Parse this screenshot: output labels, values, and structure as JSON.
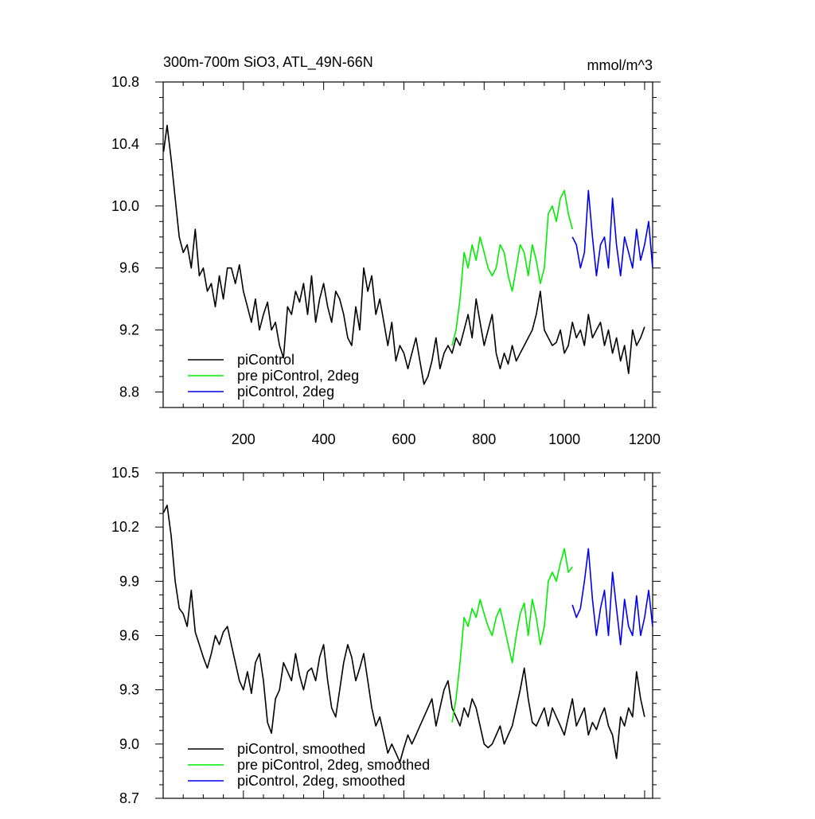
{
  "chart_data": [
    {
      "type": "line",
      "title": "300m-700m SiO3, ATL_49N-66N",
      "units": "mmol/m^3",
      "xlim": [
        0,
        1220
      ],
      "ylim": [
        8.7,
        10.8
      ],
      "xticks": [
        200,
        400,
        600,
        800,
        1000,
        1200
      ],
      "yticks": [
        8.8,
        9.2,
        9.6,
        10.0,
        10.4,
        10.8
      ],
      "ytick_labels": [
        "8.8",
        "9.2",
        "9.6",
        "10.0",
        "10.4",
        "10.8"
      ],
      "show_x_labels": true,
      "legend_position": "bottom-left",
      "series": [
        {
          "name": "piControl",
          "color": "#000000",
          "x": [
            1,
            10,
            20,
            30,
            40,
            50,
            60,
            70,
            80,
            90,
            100,
            110,
            120,
            130,
            140,
            150,
            160,
            170,
            180,
            190,
            200,
            210,
            220,
            230,
            240,
            250,
            260,
            270,
            280,
            290,
            300,
            310,
            320,
            330,
            340,
            350,
            360,
            370,
            380,
            390,
            400,
            410,
            420,
            430,
            440,
            450,
            460,
            470,
            480,
            490,
            500,
            510,
            520,
            530,
            540,
            550,
            560,
            570,
            580,
            590,
            600,
            610,
            620,
            630,
            640,
            650,
            660,
            670,
            680,
            690,
            700,
            710,
            720,
            730,
            740,
            750,
            760,
            770,
            780,
            790,
            800,
            810,
            820,
            830,
            840,
            850,
            860,
            870,
            880,
            890,
            900,
            910,
            920,
            930,
            940,
            950,
            960,
            970,
            980,
            990,
            1000,
            1010,
            1020,
            1030,
            1040,
            1050,
            1060,
            1070,
            1080,
            1090,
            1100,
            1110,
            1120,
            1130,
            1140,
            1150,
            1160,
            1170,
            1180,
            1190,
            1200
          ],
          "y": [
            10.35,
            10.52,
            10.3,
            10.05,
            9.8,
            9.7,
            9.75,
            9.6,
            9.85,
            9.55,
            9.6,
            9.45,
            9.5,
            9.35,
            9.55,
            9.4,
            9.6,
            9.6,
            9.5,
            9.62,
            9.45,
            9.35,
            9.25,
            9.4,
            9.2,
            9.3,
            9.38,
            9.2,
            9.25,
            9.1,
            9.02,
            9.35,
            9.3,
            9.45,
            9.38,
            9.5,
            9.3,
            9.55,
            9.25,
            9.4,
            9.5,
            9.35,
            9.25,
            9.45,
            9.4,
            9.3,
            9.15,
            9.1,
            9.35,
            9.2,
            9.6,
            9.45,
            9.55,
            9.3,
            9.4,
            9.25,
            9.1,
            9.25,
            9.0,
            9.1,
            9.05,
            8.95,
            9.05,
            9.15,
            9.0,
            8.85,
            8.9,
            9.0,
            9.15,
            8.95,
            9.05,
            9.1,
            9.05,
            9.15,
            9.1,
            9.2,
            9.3,
            9.15,
            9.4,
            9.25,
            9.1,
            9.2,
            9.3,
            9.05,
            8.95,
            9.05,
            8.98,
            9.1,
            9.0,
            9.05,
            9.1,
            9.15,
            9.2,
            9.3,
            9.45,
            9.2,
            9.15,
            9.1,
            9.12,
            9.2,
            9.05,
            9.1,
            9.25,
            9.15,
            9.2,
            9.1,
            9.3,
            9.15,
            9.2,
            9.25,
            9.1,
            9.2,
            9.05,
            9.15,
            9.0,
            9.1,
            8.92,
            9.2,
            9.1,
            9.15,
            9.22
          ]
        },
        {
          "name": "pre piControl, 2deg",
          "color": "#00ee00",
          "x": [
            720,
            730,
            740,
            750,
            760,
            770,
            780,
            790,
            800,
            810,
            820,
            830,
            840,
            850,
            860,
            870,
            880,
            890,
            900,
            910,
            920,
            930,
            940,
            950,
            960,
            970,
            980,
            990,
            1000,
            1010,
            1020
          ],
          "y": [
            9.1,
            9.2,
            9.4,
            9.7,
            9.6,
            9.75,
            9.65,
            9.8,
            9.7,
            9.6,
            9.55,
            9.6,
            9.75,
            9.7,
            9.55,
            9.45,
            9.6,
            9.75,
            9.7,
            9.55,
            9.75,
            9.65,
            9.5,
            9.6,
            9.95,
            10.0,
            9.9,
            10.05,
            10.1,
            9.95,
            9.85
          ]
        },
        {
          "name": "piControl, 2deg",
          "color": "#0000ee",
          "x": [
            1020,
            1030,
            1040,
            1050,
            1060,
            1070,
            1080,
            1090,
            1100,
            1110,
            1120,
            1130,
            1140,
            1150,
            1160,
            1170,
            1180,
            1190,
            1200,
            1210,
            1220
          ],
          "y": [
            9.8,
            9.75,
            9.6,
            9.7,
            10.1,
            9.8,
            9.55,
            9.75,
            9.8,
            9.6,
            10.05,
            9.75,
            9.55,
            9.8,
            9.7,
            9.6,
            9.85,
            9.65,
            9.75,
            9.9,
            9.6
          ]
        }
      ]
    },
    {
      "type": "line",
      "title": "",
      "units": "",
      "xlim": [
        0,
        1220
      ],
      "ylim": [
        8.7,
        10.5
      ],
      "xticks": [
        200,
        400,
        600,
        800,
        1000,
        1200
      ],
      "yticks": [
        8.7,
        9.0,
        9.3,
        9.6,
        9.9,
        10.2,
        10.5
      ],
      "ytick_labels": [
        "8.7",
        "9.0",
        "9.3",
        "9.6",
        "9.9",
        "10.2",
        "10.5"
      ],
      "show_x_labels": false,
      "legend_position": "bottom-left",
      "series": [
        {
          "name": "piControl, smoothed",
          "color": "#000000",
          "x": [
            1,
            10,
            20,
            30,
            40,
            50,
            60,
            70,
            80,
            90,
            100,
            110,
            120,
            130,
            140,
            150,
            160,
            170,
            180,
            190,
            200,
            210,
            220,
            230,
            240,
            250,
            260,
            270,
            280,
            290,
            300,
            310,
            320,
            330,
            340,
            350,
            360,
            370,
            380,
            390,
            400,
            410,
            420,
            430,
            440,
            450,
            460,
            470,
            480,
            490,
            500,
            510,
            520,
            530,
            540,
            550,
            560,
            570,
            580,
            590,
            600,
            610,
            620,
            630,
            640,
            650,
            660,
            670,
            680,
            690,
            700,
            710,
            720,
            730,
            740,
            750,
            760,
            770,
            780,
            790,
            800,
            810,
            820,
            830,
            840,
            850,
            860,
            870,
            880,
            890,
            900,
            910,
            920,
            930,
            940,
            950,
            960,
            970,
            980,
            990,
            1000,
            1010,
            1020,
            1030,
            1040,
            1050,
            1060,
            1070,
            1080,
            1090,
            1100,
            1110,
            1120,
            1130,
            1140,
            1150,
            1160,
            1170,
            1180,
            1190,
            1200
          ],
          "y": [
            10.28,
            10.32,
            10.15,
            9.9,
            9.75,
            9.72,
            9.65,
            9.85,
            9.62,
            9.55,
            9.48,
            9.42,
            9.5,
            9.6,
            9.55,
            9.62,
            9.65,
            9.55,
            9.45,
            9.35,
            9.3,
            9.4,
            9.28,
            9.45,
            9.5,
            9.35,
            9.12,
            9.06,
            9.25,
            9.3,
            9.45,
            9.4,
            9.35,
            9.5,
            9.38,
            9.3,
            9.4,
            9.42,
            9.35,
            9.48,
            9.55,
            9.35,
            9.2,
            9.15,
            9.3,
            9.45,
            9.55,
            9.48,
            9.35,
            9.42,
            9.5,
            9.35,
            9.2,
            9.1,
            9.15,
            9.05,
            8.95,
            9.0,
            8.95,
            8.9,
            8.98,
            9.05,
            9.0,
            9.05,
            9.1,
            9.15,
            9.2,
            9.25,
            9.1,
            9.2,
            9.3,
            9.35,
            9.2,
            9.15,
            9.1,
            9.2,
            9.15,
            9.25,
            9.2,
            9.1,
            9.0,
            8.98,
            9.0,
            9.05,
            9.1,
            9.0,
            9.05,
            9.1,
            9.2,
            9.3,
            9.42,
            9.25,
            9.12,
            9.1,
            9.15,
            9.2,
            9.1,
            9.2,
            9.15,
            9.1,
            9.05,
            9.15,
            9.25,
            9.1,
            9.15,
            9.2,
            9.05,
            9.12,
            9.08,
            9.15,
            9.2,
            9.1,
            9.05,
            8.92,
            9.15,
            9.1,
            9.2,
            9.15,
            9.4,
            9.25,
            9.15
          ]
        },
        {
          "name": "pre piControl, 2deg, smoothed",
          "color": "#00ee00",
          "x": [
            720,
            730,
            740,
            750,
            760,
            770,
            780,
            790,
            800,
            810,
            820,
            830,
            840,
            850,
            860,
            870,
            880,
            890,
            900,
            910,
            920,
            930,
            940,
            950,
            960,
            970,
            980,
            990,
            1000,
            1010,
            1020
          ],
          "y": [
            9.12,
            9.25,
            9.45,
            9.7,
            9.65,
            9.75,
            9.7,
            9.8,
            9.72,
            9.65,
            9.6,
            9.7,
            9.75,
            9.65,
            9.55,
            9.45,
            9.6,
            9.72,
            9.78,
            9.6,
            9.8,
            9.7,
            9.55,
            9.65,
            9.9,
            9.95,
            9.9,
            10.0,
            10.08,
            9.95,
            9.98
          ]
        },
        {
          "name": "piControl, 2deg, smoothed",
          "color": "#0000ee",
          "x": [
            1020,
            1030,
            1040,
            1050,
            1060,
            1070,
            1080,
            1090,
            1100,
            1110,
            1120,
            1130,
            1140,
            1150,
            1160,
            1170,
            1180,
            1190,
            1200,
            1210,
            1220
          ],
          "y": [
            9.77,
            9.7,
            9.75,
            9.9,
            10.08,
            9.8,
            9.6,
            9.75,
            9.85,
            9.6,
            9.95,
            9.75,
            9.55,
            9.8,
            9.65,
            9.6,
            9.82,
            9.6,
            9.7,
            9.85,
            9.65
          ]
        }
      ]
    }
  ]
}
